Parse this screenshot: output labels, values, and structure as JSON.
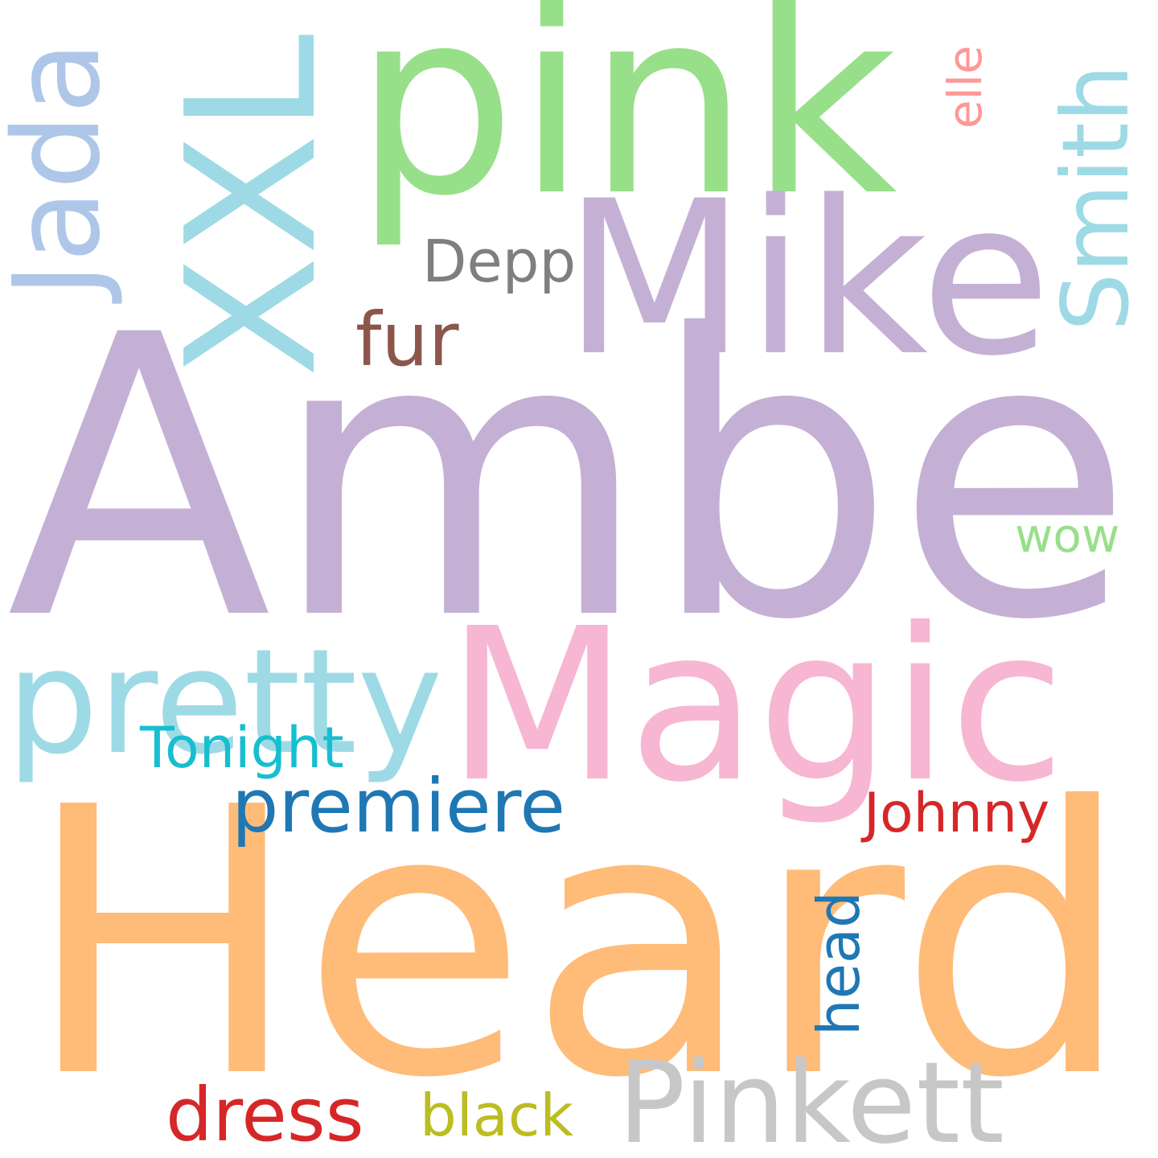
{
  "background": "#ffffff",
  "words": [
    {
      "id": "amber",
      "text": "Amber",
      "color": "#c5b0d5",
      "orientation": "horizontal"
    },
    {
      "id": "heard",
      "text": "Heard",
      "color": "#ffbb78",
      "orientation": "horizontal"
    },
    {
      "id": "magic",
      "text": "Magic",
      "color": "#f7b6d2",
      "orientation": "horizontal"
    },
    {
      "id": "pink",
      "text": "pink",
      "color": "#98df8a",
      "orientation": "horizontal"
    },
    {
      "id": "mike",
      "text": "Mike",
      "color": "#c5b0d5",
      "orientation": "horizontal"
    },
    {
      "id": "xxl",
      "text": "XXL",
      "color": "#9edae5",
      "orientation": "vertical"
    },
    {
      "id": "jada",
      "text": "Jada",
      "color": "#aec7e8",
      "orientation": "vertical"
    },
    {
      "id": "pretty",
      "text": "pretty",
      "color": "#9edae5",
      "orientation": "horizontal"
    },
    {
      "id": "pinkett",
      "text": "Pinkett",
      "color": "#c7c7c7",
      "orientation": "horizontal"
    },
    {
      "id": "smith",
      "text": "Smith",
      "color": "#9edae5",
      "orientation": "vertical"
    },
    {
      "id": "premiere",
      "text": "premiere",
      "color": "#1f77b4",
      "orientation": "horizontal"
    },
    {
      "id": "dress",
      "text": "dress",
      "color": "#d62728",
      "orientation": "horizontal"
    },
    {
      "id": "fur",
      "text": "fur",
      "color": "#8c564b",
      "orientation": "horizontal"
    },
    {
      "id": "depp",
      "text": "Depp",
      "color": "#7f7f7f",
      "orientation": "horizontal"
    },
    {
      "id": "tonight",
      "text": "Tonight",
      "color": "#17becf",
      "orientation": "horizontal"
    },
    {
      "id": "johnny",
      "text": "Johnny",
      "color": "#d62728",
      "orientation": "horizontal"
    },
    {
      "id": "black",
      "text": "black",
      "color": "#bcbd22",
      "orientation": "horizontal"
    },
    {
      "id": "head",
      "text": "head",
      "color": "#1f77b4",
      "orientation": "vertical"
    },
    {
      "id": "elle",
      "text": "elle",
      "color": "#ff9896",
      "orientation": "vertical"
    },
    {
      "id": "wow",
      "text": "wow",
      "color": "#98df8a",
      "orientation": "horizontal"
    }
  ]
}
